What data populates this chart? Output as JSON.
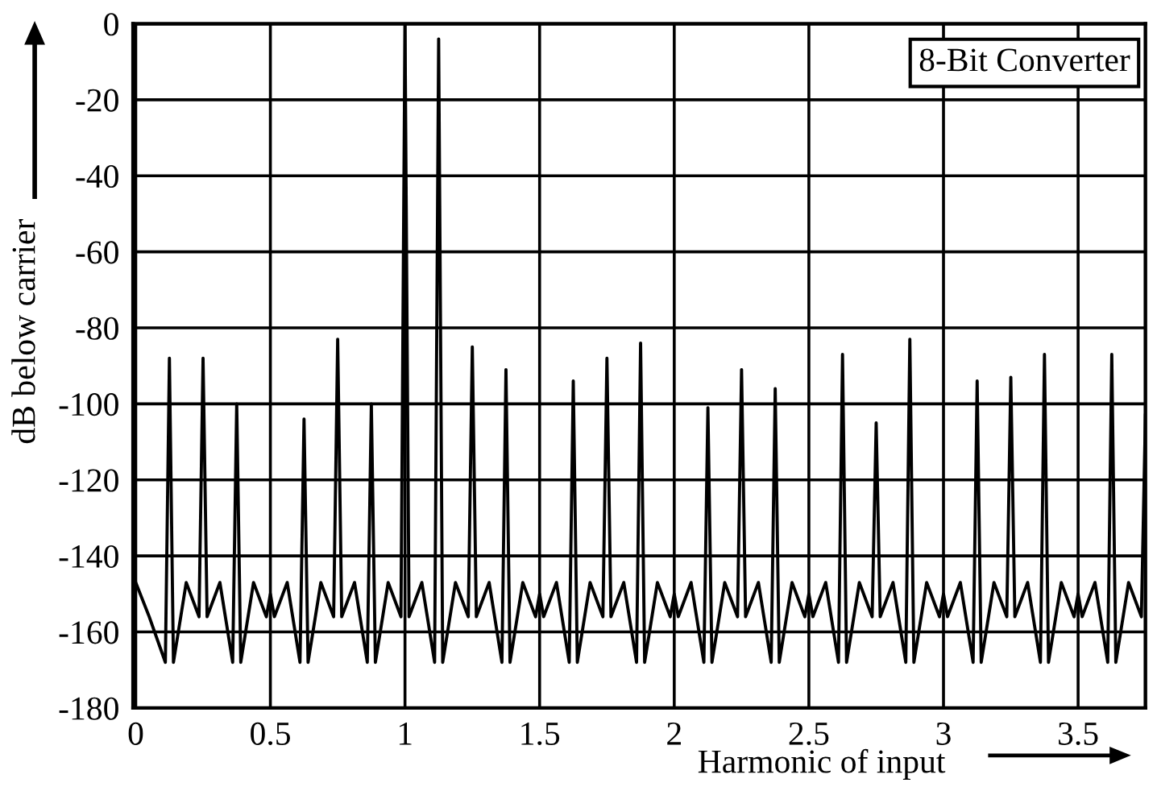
{
  "chart_data": {
    "type": "line",
    "xlabel": "Harmonic of input",
    "ylabel": "dB below carrier",
    "annotations": [
      "8-Bit Converter"
    ],
    "series": [
      {
        "color": "#000000",
        "x": [
          0,
          0.05,
          0.11,
          0.125,
          0.14,
          0.1875,
          0.235,
          0.25,
          0.265,
          0.3125,
          0.36,
          0.375,
          0.39,
          0.4375,
          0.485,
          0.5,
          0.515,
          0.5625,
          0.61,
          0.625,
          0.64,
          0.6875,
          0.735,
          0.75,
          0.765,
          0.8125,
          0.86,
          0.875,
          0.89,
          0.9375,
          0.985,
          1.0,
          1.015,
          1.0625,
          1.11,
          1.125,
          1.14,
          1.1875,
          1.235,
          1.25,
          1.265,
          1.3125,
          1.36,
          1.375,
          1.39,
          1.4375,
          1.485,
          1.5,
          1.515,
          1.5625,
          1.61,
          1.625,
          1.64,
          1.6875,
          1.735,
          1.75,
          1.765,
          1.8125,
          1.86,
          1.875,
          1.89,
          1.9375,
          1.985,
          2.0,
          2.015,
          2.0625,
          2.11,
          2.125,
          2.14,
          2.1875,
          2.235,
          2.25,
          2.265,
          2.3125,
          2.36,
          2.375,
          2.39,
          2.4375,
          2.485,
          2.5,
          2.515,
          2.5625,
          2.61,
          2.625,
          2.64,
          2.6875,
          2.735,
          2.75,
          2.765,
          2.8125,
          2.86,
          2.875,
          2.89,
          2.9375,
          2.985,
          3.0,
          3.015,
          3.0625,
          3.11,
          3.125,
          3.14,
          3.1875,
          3.235,
          3.25,
          3.265,
          3.3125,
          3.36,
          3.375,
          3.39,
          3.4375,
          3.485,
          3.5,
          3.515,
          3.5625,
          3.61,
          3.625,
          3.64,
          3.6875,
          3.735,
          3.75
        ],
        "values": [
          -147,
          -156,
          -168,
          -88,
          -168,
          -147,
          -156,
          -88,
          -156,
          -147,
          -168,
          -100,
          -168,
          -147,
          -156,
          -150,
          -156,
          -147,
          -168,
          -104,
          -168,
          -147,
          -156,
          -83,
          -156,
          -147,
          -168,
          -100,
          -168,
          -147,
          -156,
          0,
          -156,
          -147,
          -168,
          -4,
          -168,
          -147,
          -156,
          -85,
          -156,
          -147,
          -168,
          -91,
          -168,
          -147,
          -156,
          -150,
          -156,
          -147,
          -168,
          -94,
          -168,
          -147,
          -156,
          -88,
          -156,
          -147,
          -168,
          -84,
          -168,
          -147,
          -156,
          -150,
          -156,
          -147,
          -168,
          -101,
          -168,
          -147,
          -156,
          -91,
          -156,
          -147,
          -168,
          -96,
          -168,
          -147,
          -156,
          -150,
          -156,
          -147,
          -168,
          -87,
          -168,
          -147,
          -156,
          -105,
          -156,
          -147,
          -168,
          -83,
          -168,
          -147,
          -156,
          -150,
          -156,
          -147,
          -168,
          -94,
          -168,
          -147,
          -156,
          -93,
          -156,
          -147,
          -168,
          -87,
          -168,
          -147,
          -156,
          -150,
          -156,
          -147,
          -168,
          -87,
          -168,
          -147,
          -156,
          -103
        ]
      }
    ],
    "xlim": [
      -0.01,
      3.75
    ],
    "ylim": [
      -180,
      0
    ],
    "xticks": [
      0,
      0.5,
      1,
      1.5,
      2,
      2.5,
      3,
      3.5
    ],
    "yticks": [
      -180,
      -160,
      -140,
      -120,
      -100,
      -80,
      -60,
      -40,
      -20,
      0
    ],
    "grid": true,
    "legend": false,
    "marker": "none",
    "line_style": "solid"
  }
}
